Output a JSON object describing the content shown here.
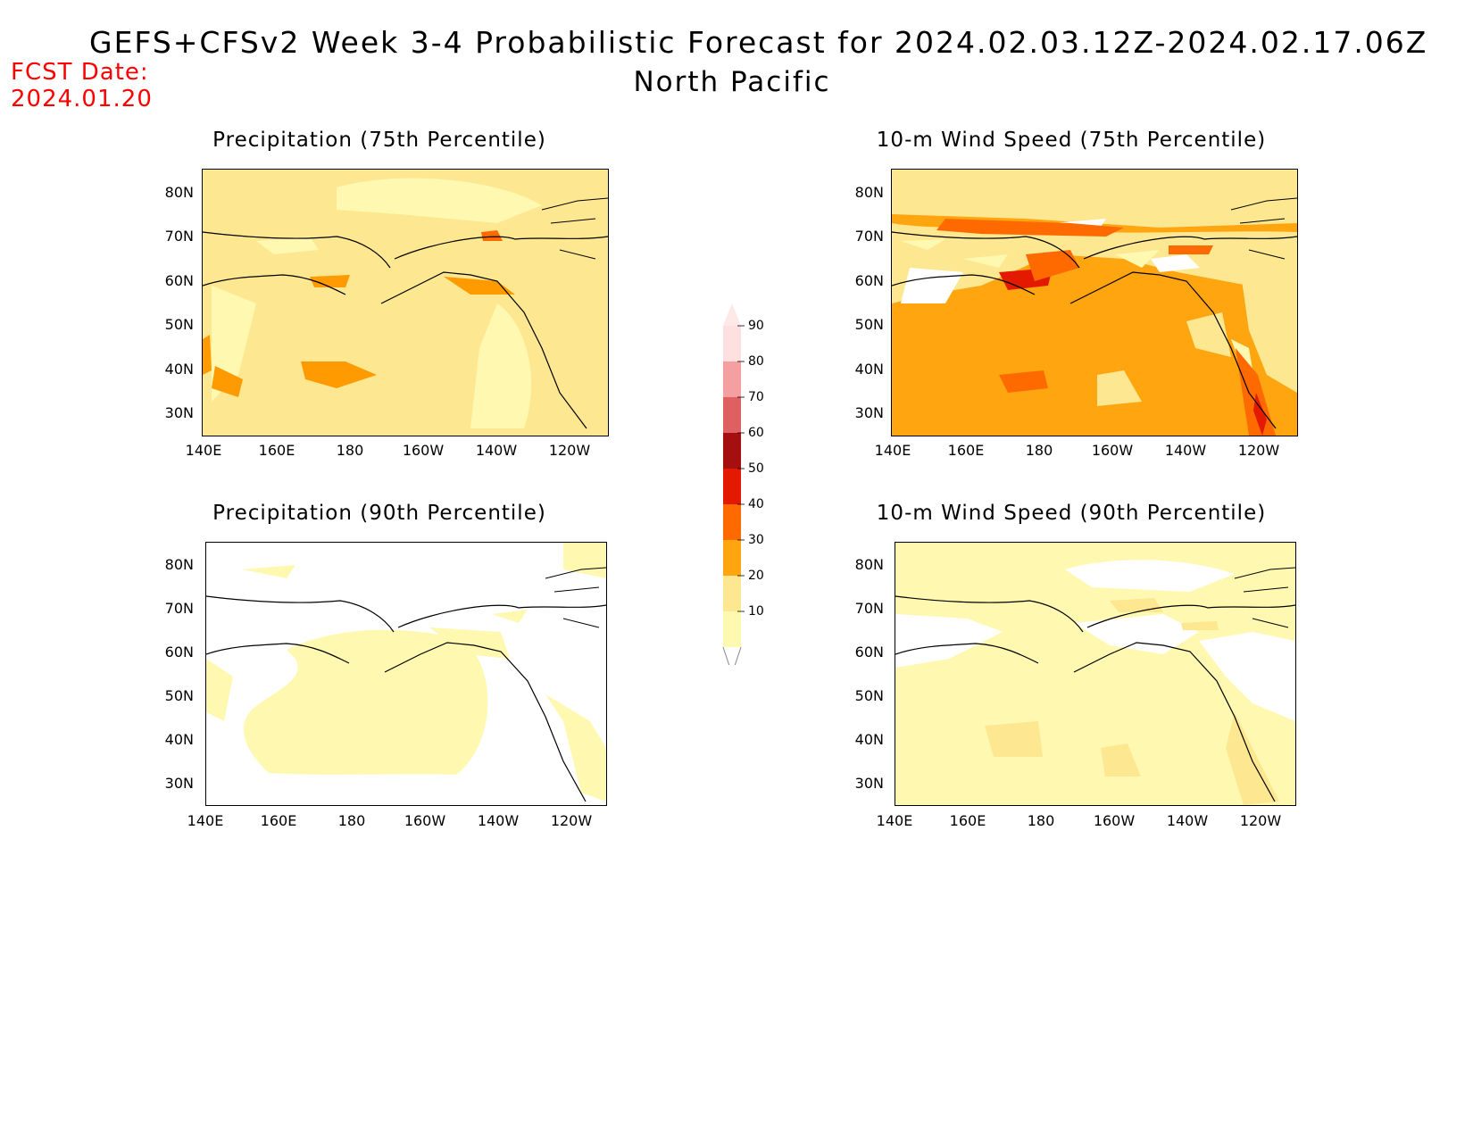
{
  "header": {
    "title": "GEFS+CFSv2 Week 3-4 Probabilistic Forecast for 2024.02.03.12Z-2024.02.17.06Z",
    "subtitle": "North Pacific",
    "fcst_label": "FCST Date:",
    "fcst_date": "2024.01.20"
  },
  "panels": [
    {
      "title": "Precipitation (75th Percentile)",
      "base": "#fde790",
      "blobs": "p75"
    },
    {
      "title": "10-m Wind Speed (75th Percentile)",
      "base": "#ffa510",
      "blobs": "w75"
    },
    {
      "title": "Precipitation (90th Percentile)",
      "base": "#ffffff",
      "blobs": "p90"
    },
    {
      "title": "10-m Wind Speed (90th Percentile)",
      "base": "#fff8b0",
      "blobs": "w90"
    }
  ],
  "axes": {
    "lat_labels": [
      "80N",
      "70N",
      "60N",
      "50N",
      "40N",
      "30N"
    ],
    "lon_labels": [
      "140E",
      "160E",
      "180",
      "160W",
      "140W",
      "120W"
    ]
  },
  "colorbar": {
    "levels": [
      "10",
      "20",
      "30",
      "40",
      "50",
      "60",
      "70",
      "80",
      "90"
    ],
    "colors": [
      "#fff8b0",
      "#fde790",
      "#ffa510",
      "#ff6a00",
      "#e31a00",
      "#a50f0f",
      "#de6060",
      "#f4a0a0",
      "#ffe0e0"
    ]
  }
}
